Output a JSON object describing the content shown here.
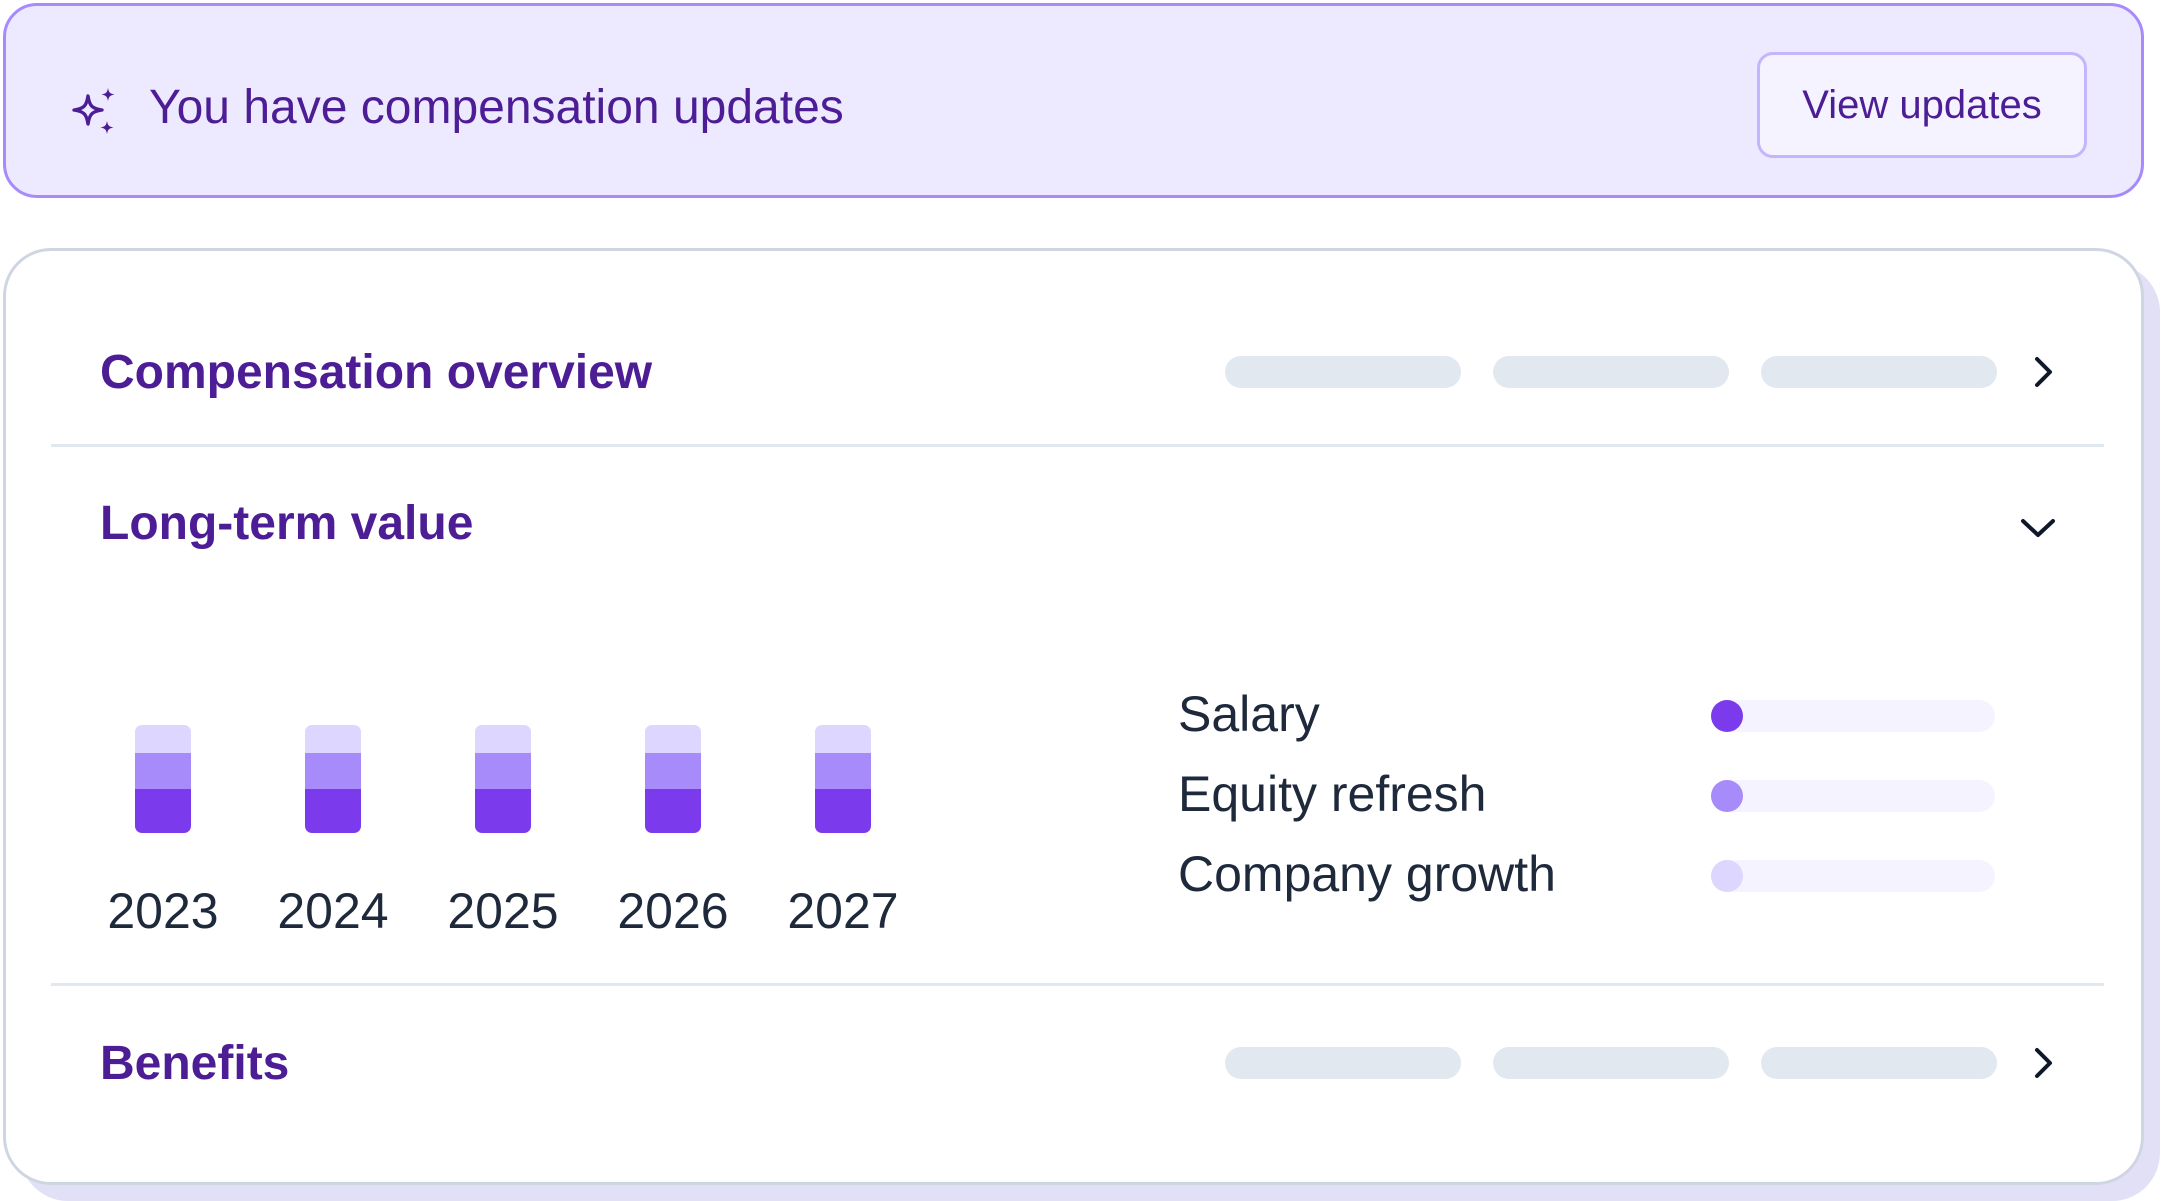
{
  "banner": {
    "icon": "sparkle-icon",
    "text": "You have compensation updates",
    "button_label": "View updates"
  },
  "sections": {
    "overview": {
      "title": "Compensation overview",
      "chevron": "chevron-right-icon"
    },
    "long_term": {
      "title": "Long-term value",
      "chevron": "chevron-down-icon"
    },
    "benefits": {
      "title": "Benefits",
      "chevron": "chevron-right-icon"
    }
  },
  "chart_data": {
    "type": "bar",
    "stacked": true,
    "categories": [
      "2023",
      "2024",
      "2025",
      "2026",
      "2027"
    ],
    "series": [
      {
        "name": "Salary",
        "color": "#7c3aed",
        "values": [
          0.41,
          0.41,
          0.41,
          0.41,
          0.41
        ]
      },
      {
        "name": "Equity refresh",
        "color": "#a78bfa",
        "values": [
          0.33,
          0.33,
          0.33,
          0.33,
          0.33
        ]
      },
      {
        "name": "Company growth",
        "color": "#ddd6fe",
        "values": [
          0.26,
          0.26,
          0.26,
          0.26,
          0.26
        ]
      }
    ]
  },
  "legend": {
    "items": [
      {
        "label": "Salary",
        "color": "#7c3aed"
      },
      {
        "label": "Equity refresh",
        "color": "#a78bfa"
      },
      {
        "label": "Company growth",
        "color": "#ddd6fe"
      }
    ]
  },
  "colors": {
    "brand": "#4c1d95",
    "accent": "#7c3aed",
    "banner_bg": "#ede9fe",
    "banner_border": "#a78bfa",
    "placeholder": "#e2e8f0"
  }
}
